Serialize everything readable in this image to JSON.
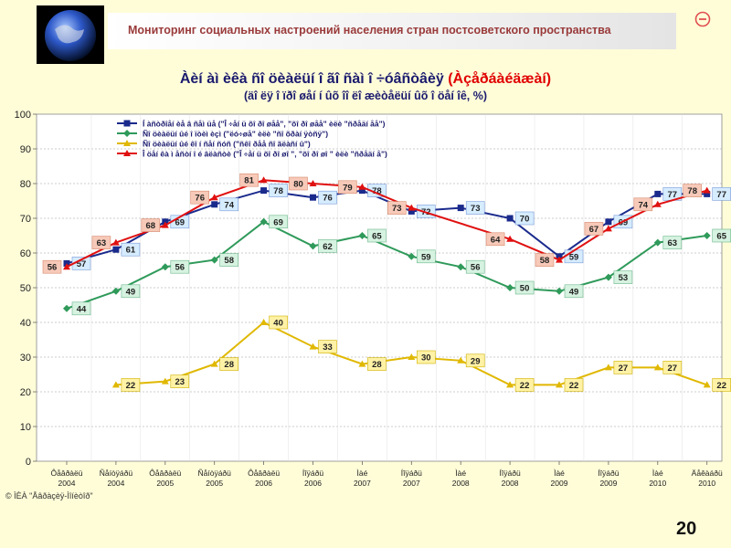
{
  "header": {
    "title": "Мониторинг социальных настроений населения стран постсоветского пространства"
  },
  "icons": {
    "logo": "globe-icon",
    "nav": "return-circle-icon"
  },
  "chart_data": {
    "type": "line",
    "title_main": "Àèí àì èêà ñî öèàëüí î ãî  ñàì î ÷óâñòâèÿ ",
    "title_highlight": "(Àçåðáàéäæàí)",
    "subtitle": "(äî ëÿ î ïðî øåí í ûõ îî ëî æèòåëüí ûõ î öåí îê, %)",
    "categories": [
      "Ôåâðàëü 2004",
      "Ñåíòÿáðü 2004",
      "Ôåâðàëü 2005",
      "Ñåíòÿáðü 2005",
      "Ôåâðàëü 2006",
      "Íîÿáðü 2006",
      "Ìàé 2007",
      "Íîÿáðü 2007",
      "Ìàé 2008",
      "Íîÿáðü 2008",
      "Ìàé 2009",
      "Íîÿáðü 2009",
      "Ìàé 2010",
      "Äåêàáðü 2010"
    ],
    "x": [
      0,
      1,
      2,
      3,
      4,
      5,
      6,
      7,
      8,
      9,
      10,
      11,
      12,
      13
    ],
    "ylim": [
      0,
      100
    ],
    "yticks": [
      0,
      10,
      20,
      30,
      40,
      50,
      60,
      70,
      80,
      90,
      100
    ],
    "grid": true,
    "legend_position": "top",
    "series": [
      {
        "name": "Í àñòðîåí èå â ñåì üå (\"Î ÷åí ü õî ðî øåå\", \"õî ðî øåå\" èëè \"ñðåäí åå\")",
        "color": "#1a2a8c",
        "marker": "square",
        "x": [
          0,
          1,
          2,
          3,
          4,
          5,
          6,
          7,
          8,
          9,
          10,
          11,
          12,
          13
        ],
        "values": [
          57,
          61,
          69,
          74,
          78,
          76,
          78,
          72,
          73,
          70,
          59,
          69,
          77,
          77
        ]
      },
      {
        "name": "Ñî öèàëüí ûé î ïòèì èçì  (\"ëó÷øå\" èëè \"ñî õðàí ÿòñÿ\")",
        "color": "#2f9a5a",
        "marker": "diamond",
        "x": [
          0,
          1,
          2,
          3,
          4,
          5,
          6,
          7,
          8,
          9,
          10,
          11,
          12,
          13
        ],
        "values": [
          44,
          49,
          56,
          58,
          69,
          62,
          65,
          59,
          56,
          50,
          49,
          53,
          63,
          65
        ]
      },
      {
        "name": "Ñî öèàëüí ûé êî í ñåí ñóñ (\"ñêî ðåå ñî ãëàñí û\")",
        "color": "#e0b800",
        "marker": "triangle",
        "x": [
          1,
          2,
          3,
          4,
          5,
          6,
          7,
          8,
          9,
          10,
          11,
          12,
          13
        ],
        "values": [
          22,
          23,
          28,
          40,
          33,
          28,
          30,
          29,
          22,
          22,
          27,
          27,
          22
        ]
      },
      {
        "name": "Î öåí êà ì åñòí î é âëàñòè (\"Î ÷åí ü õî ðî øî \", \"õî ðî øî \" èëè \"ñðåäí å\")",
        "color": "#e01010",
        "marker": "triangle",
        "x": [
          0,
          1,
          2,
          3,
          4,
          5,
          6,
          7,
          9,
          10,
          11,
          12,
          13
        ],
        "values": [
          56,
          63,
          68,
          76,
          81,
          80,
          79,
          73,
          64,
          58,
          67,
          74,
          78
        ]
      }
    ],
    "source": "© ÌÈÀ \"Åâðàçèÿ-Ìîíèòîð\""
  },
  "page_number": "20"
}
